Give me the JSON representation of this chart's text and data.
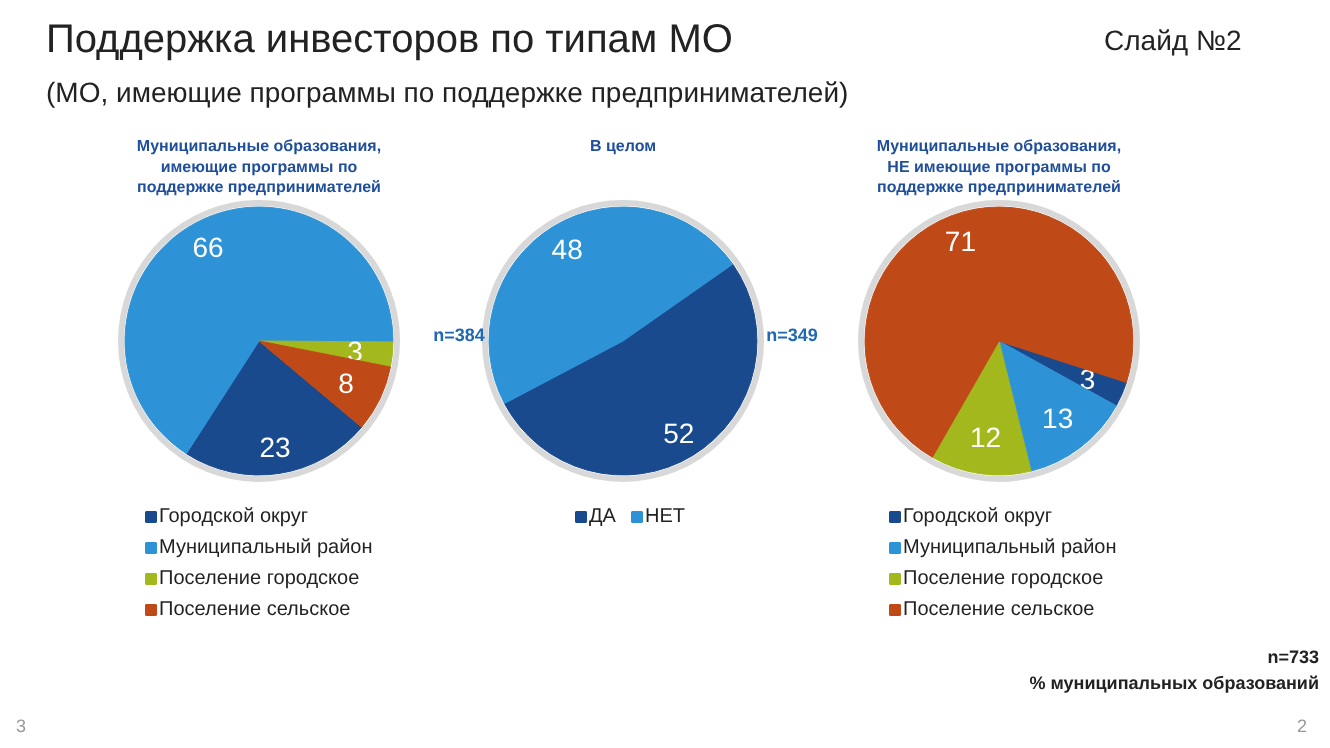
{
  "chart_data": [
    {
      "type": "pie",
      "title": "Муниципальные образования, имеющие программы по поддержке предпринимателей",
      "categories": [
        "Городской округ",
        "Муниципальный район",
        "Поселение городское",
        "Поселение сельское"
      ],
      "values": [
        23,
        66,
        3,
        8
      ],
      "colors": [
        "#1a4a8e",
        "#2e93d6",
        "#a3b81c",
        "#c04a17"
      ],
      "data_labels": true,
      "legend": "bottom",
      "annotations": [
        "Поддержка инвесторов по типам МО",
        "(МО, имеющие программы по поддержке предпринимателей)",
        "Слайд №2",
        "3"
      ]
    },
    {
      "type": "pie",
      "title": "В целом",
      "categories": [
        "ДА",
        "НЕТ"
      ],
      "values": [
        52,
        48
      ],
      "colors": [
        "#1a4a8e",
        "#2e93d6"
      ],
      "data_labels": true,
      "legend": "bottom",
      "annotations": [
        "n=384",
        "n=349"
      ]
    },
    {
      "type": "pie",
      "title": "Муниципальные образования, НЕ имеющие программы по поддержке предпринимателей",
      "categories": [
        "Городской округ",
        "Муниципальный район",
        "Поселение городское",
        "Поселение сельское"
      ],
      "values": [
        3,
        13,
        12,
        71
      ],
      "colors": [
        "#1a4a8e",
        "#2e93d6",
        "#a3b81c",
        "#c04a17"
      ],
      "data_labels": true,
      "legend": "bottom",
      "annotations": [
        "n=733",
        "% муниципальных образований",
        "2"
      ]
    }
  ]
}
